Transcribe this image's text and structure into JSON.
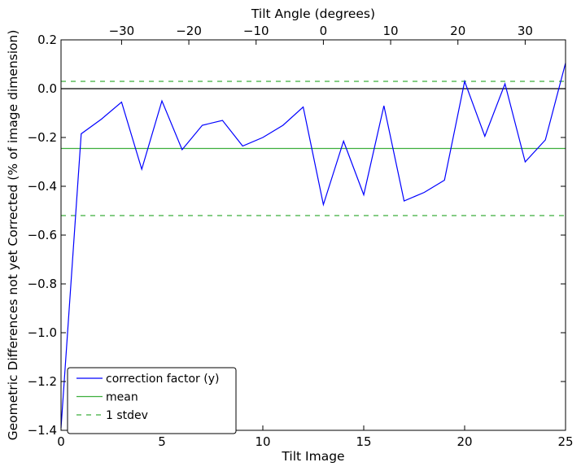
{
  "chart_data": {
    "type": "line",
    "xlabel": "Tilt Image",
    "ylabel": "Geometric Differences not yet Corrected (% of image dimension)",
    "top_xlabel": "Tilt Angle (degrees)",
    "xlim": [
      0,
      25
    ],
    "ylim": [
      -1.4,
      0.2
    ],
    "x_ticks": [
      0,
      5,
      10,
      15,
      20,
      25
    ],
    "y_ticks": [
      -1.4,
      -1.2,
      -1.0,
      -0.8,
      -0.6,
      -0.4,
      -0.2,
      0.0,
      0.2
    ],
    "x_tick_labels": [
      "0",
      "5",
      "10",
      "15",
      "20",
      "25"
    ],
    "y_tick_labels": [
      "−1.4",
      "−1.2",
      "−1.0",
      "−0.8",
      "−0.6",
      "−0.4",
      "−0.2",
      "0.0",
      "0.2"
    ],
    "top_axis": {
      "xlim": [
        -39,
        36
      ],
      "ticks": [
        -30,
        -20,
        -10,
        0,
        10,
        20,
        30
      ],
      "tick_labels": [
        "−30",
        "−20",
        "−10",
        "0",
        "10",
        "20",
        "30"
      ]
    },
    "grid": false,
    "legend_position": "lower-left",
    "series": [
      {
        "name": "correction factor (y)",
        "color": "#0000ff",
        "style": "solid",
        "x": [
          0,
          1,
          2,
          3,
          4,
          5,
          6,
          7,
          8,
          9,
          10,
          11,
          12,
          13,
          14,
          15,
          16,
          17,
          18,
          19,
          20,
          21,
          22,
          23,
          24,
          25
        ],
        "values": [
          -1.39,
          -0.185,
          -0.125,
          -0.055,
          -0.33,
          -0.05,
          -0.25,
          -0.15,
          -0.13,
          -0.235,
          -0.2,
          -0.15,
          -0.075,
          -0.475,
          -0.215,
          -0.435,
          -0.07,
          -0.46,
          -0.425,
          -0.375,
          0.03,
          -0.195,
          0.02,
          -0.3,
          -0.21,
          0.105
        ]
      },
      {
        "name": "mean",
        "color": "#3cae3c",
        "style": "solid",
        "x": [
          0,
          25
        ],
        "values": [
          -0.245,
          -0.245
        ]
      },
      {
        "name": "1 stdev",
        "color": "#3cae3c",
        "style": "dashed",
        "x": [
          0,
          25
        ],
        "values": [
          0.03,
          0.03
        ]
      },
      {
        "name": "",
        "color": "#3cae3c",
        "style": "dashed",
        "x": [
          0,
          25
        ],
        "values": [
          -0.52,
          -0.52
        ]
      },
      {
        "name": "",
        "color": "#000000",
        "style": "solid",
        "x": [
          0,
          25
        ],
        "values": [
          0.0,
          0.0
        ]
      }
    ]
  }
}
